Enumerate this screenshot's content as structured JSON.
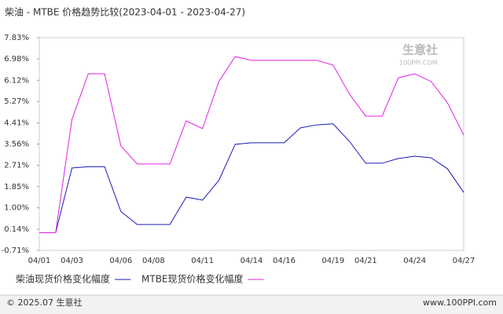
{
  "chart_data": {
    "type": "line",
    "title": "柴油 - MTBE 价格趋势比较(2023-04-01 - 2023-04-27)",
    "categories": [
      "04/01",
      null,
      "04/03",
      null,
      null,
      "04/06",
      null,
      "04/08",
      null,
      null,
      "04/11",
      null,
      null,
      "04/14",
      null,
      "04/16",
      null,
      null,
      "04/19",
      null,
      "04/21",
      null,
      null,
      "04/24",
      null,
      null,
      "04/27"
    ],
    "series": [
      {
        "name": "柴油现货价格变化幅度",
        "color": "#1a1ab8",
        "values": [
          0,
          0,
          2.6,
          2.65,
          2.65,
          0.85,
          0.33,
          0.33,
          0.33,
          1.43,
          1.31,
          2.1,
          3.55,
          3.61,
          3.61,
          3.61,
          4.21,
          4.33,
          4.37,
          3.67,
          2.79,
          2.79,
          2.98,
          3.07,
          3.01,
          2.57,
          1.62
        ]
      },
      {
        "name": "MTBE现货价格变化幅度",
        "color": "#e020e0",
        "values": [
          0,
          0,
          4.55,
          6.38,
          6.38,
          3.48,
          2.76,
          2.76,
          2.76,
          4.49,
          4.18,
          6.07,
          7.07,
          6.92,
          6.92,
          6.92,
          6.92,
          6.92,
          6.73,
          5.56,
          4.68,
          4.68,
          6.22,
          6.38,
          6.07,
          5.22,
          3.92
        ]
      }
    ],
    "ylim": [
      -0.71,
      7.83
    ],
    "yticks": [
      {
        "value": -0.71,
        "label": "-0.71%"
      },
      {
        "value": 0.14,
        "label": "0.14%"
      },
      {
        "value": 1.0,
        "label": "1.00%"
      },
      {
        "value": 1.85,
        "label": "1.85%"
      },
      {
        "value": 2.71,
        "label": "2.71%"
      },
      {
        "value": 3.56,
        "label": "3.56%"
      },
      {
        "value": 4.41,
        "label": "4.41%"
      },
      {
        "value": 5.27,
        "label": "5.27%"
      },
      {
        "value": 6.12,
        "label": "6.12%"
      },
      {
        "value": 6.98,
        "label": "6.98%"
      },
      {
        "value": 7.83,
        "label": "7.83%"
      }
    ],
    "watermark": [
      "生意社",
      "100PPI.COM"
    ],
    "footer_left": "© 2025.07 生意社",
    "footer_right": "www.100PPI.com"
  }
}
